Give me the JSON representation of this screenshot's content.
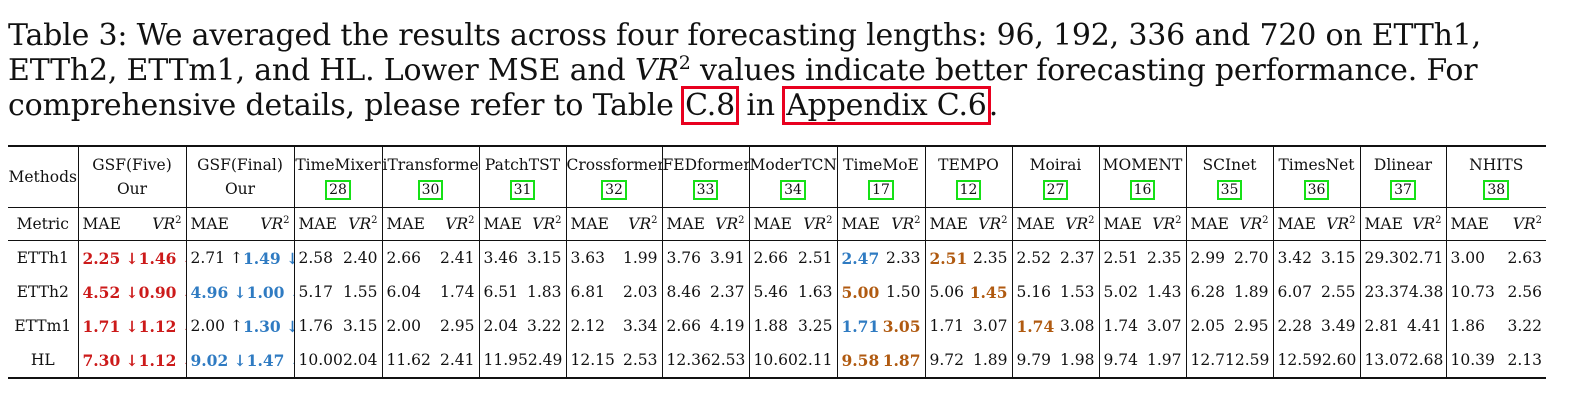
{
  "caption": {
    "part1": "Table 3: We averaged the results across four forecasting lengths: 96, 192, 336 and 720 on ETTh1, ETTh2, ETTm1, and HL. Lower MSE and ",
    "vr_symbol": "VR",
    "vr_exp": "2",
    "part2": " values indicate better forecasting performance. For comprehensive details, please refer to Table ",
    "table_ref": "C.8",
    "part3": " in ",
    "appendix_ref": "Appendix  C.6",
    "part4": "."
  },
  "colors": {
    "best_red": "#cc1a1a",
    "second_blue": "#2f7bc2",
    "third_orange": "#b05a10",
    "ref_box": "#e8001f",
    "cite_box": "#16e016"
  },
  "table": {
    "methods_label": "Methods",
    "metric_label": "Metric",
    "mae": "MAE",
    "vr": "VR",
    "vr_exp": "2",
    "our_label": "Our",
    "methods": [
      {
        "name": "GSF(Five)",
        "sub": "Our",
        "cite": ""
      },
      {
        "name": "GSF(Final)",
        "sub": "Our",
        "cite": ""
      },
      {
        "name": "TimeMixer",
        "cite": "28"
      },
      {
        "name": "iTransformer",
        "cite": "30"
      },
      {
        "name": "PatchTST",
        "cite": "31"
      },
      {
        "name": "Crossformer",
        "cite": "32"
      },
      {
        "name": "FEDformer",
        "cite": "33"
      },
      {
        "name": "ModerTCN",
        "cite": "34"
      },
      {
        "name": "TimeMoE",
        "cite": "17"
      },
      {
        "name": "TEMPO",
        "cite": "12"
      },
      {
        "name": "Moirai",
        "cite": "27"
      },
      {
        "name": "MOMENT",
        "cite": "16"
      },
      {
        "name": "SCInet",
        "cite": "35"
      },
      {
        "name": "TimesNet",
        "cite": "36"
      },
      {
        "name": "Dlinear",
        "cite": "37"
      },
      {
        "name": "NHITS",
        "cite": "38"
      }
    ],
    "rows": [
      {
        "dataset": "ETTh1",
        "gsf_five": {
          "mae": "2.25",
          "mae_arrow": "↓",
          "vr": "1.46",
          "vr_arrow": "↓"
        },
        "gsf_final": {
          "mae": "2.71",
          "mae_arrow": "↑",
          "vr": "1.49",
          "vr_arrow": "↓"
        },
        "cells": [
          {
            "mae": "2.58",
            "vr": "2.40"
          },
          {
            "mae": "2.66",
            "vr": "2.41"
          },
          {
            "mae": "3.46",
            "vr": "3.15"
          },
          {
            "mae": "3.63",
            "vr": "1.99"
          },
          {
            "mae": "3.76",
            "vr": "3.91"
          },
          {
            "mae": "2.66",
            "vr": "2.51"
          },
          {
            "mae": "2.47",
            "vr": "2.33"
          },
          {
            "mae": "2.51",
            "vr": "2.35"
          },
          {
            "mae": "2.52",
            "vr": "2.37"
          },
          {
            "mae": "2.51",
            "vr": "2.35"
          },
          {
            "mae": "2.99",
            "vr": "2.70"
          },
          {
            "mae": "3.42",
            "vr": "3.15"
          },
          {
            "mae": "29.30",
            "vr": "2.71"
          },
          {
            "mae": "3.00",
            "vr": "2.63"
          }
        ]
      },
      {
        "dataset": "ETTh2",
        "gsf_five": {
          "mae": "4.52",
          "mae_arrow": "↓",
          "vr": "0.90",
          "vr_arrow": "↓"
        },
        "gsf_final": {
          "mae": "4.96",
          "mae_arrow": "↓",
          "vr": "1.00",
          "vr_arrow": "↓"
        },
        "cells": [
          {
            "mae": "5.17",
            "vr": "1.55"
          },
          {
            "mae": "6.04",
            "vr": "1.74"
          },
          {
            "mae": "6.51",
            "vr": "1.83"
          },
          {
            "mae": "6.81",
            "vr": "2.03"
          },
          {
            "mae": "8.46",
            "vr": "2.37"
          },
          {
            "mae": "5.46",
            "vr": "1.63"
          },
          {
            "mae": "5.00",
            "vr": "1.50"
          },
          {
            "mae": "5.06",
            "vr": "1.45"
          },
          {
            "mae": "5.16",
            "vr": "1.53"
          },
          {
            "mae": "5.02",
            "vr": "1.43"
          },
          {
            "mae": "6.28",
            "vr": "1.89"
          },
          {
            "mae": "6.07",
            "vr": "2.55"
          },
          {
            "mae": "23.37",
            "vr": "4.38"
          },
          {
            "mae": "10.73",
            "vr": "2.56"
          }
        ]
      },
      {
        "dataset": "ETTm1",
        "gsf_five": {
          "mae": "1.71",
          "mae_arrow": "↓",
          "vr": "1.12",
          "vr_arrow": "↓"
        },
        "gsf_final": {
          "mae": "2.00",
          "mae_arrow": "↑",
          "vr": "1.30",
          "vr_arrow": "↓"
        },
        "cells": [
          {
            "mae": "1.76",
            "vr": "3.15"
          },
          {
            "mae": "2.00",
            "vr": "2.95"
          },
          {
            "mae": "2.04",
            "vr": "3.22"
          },
          {
            "mae": "2.12",
            "vr": "3.34"
          },
          {
            "mae": "2.66",
            "vr": "4.19"
          },
          {
            "mae": "1.88",
            "vr": "3.25"
          },
          {
            "mae": "1.71",
            "vr": "3.05"
          },
          {
            "mae": "1.71",
            "vr": "3.07"
          },
          {
            "mae": "1.74",
            "vr": "3.08"
          },
          {
            "mae": "1.74",
            "vr": "3.07"
          },
          {
            "mae": "2.05",
            "vr": "2.95"
          },
          {
            "mae": "2.28",
            "vr": "3.49"
          },
          {
            "mae": "2.81",
            "vr": "4.41"
          },
          {
            "mae": "1.86",
            "vr": "3.22"
          }
        ]
      },
      {
        "dataset": "HL",
        "gsf_five": {
          "mae": "7.30",
          "mae_arrow": "↓",
          "vr": "1.12",
          "vr_arrow": "↓"
        },
        "gsf_final": {
          "mae": "9.02",
          "mae_arrow": "↓",
          "vr": "1.47",
          "vr_arrow": "↓"
        },
        "cells": [
          {
            "mae": "10.00",
            "vr": "2.04"
          },
          {
            "mae": "11.62",
            "vr": "2.41"
          },
          {
            "mae": "11.95",
            "vr": "2.49"
          },
          {
            "mae": "12.15",
            "vr": "2.53"
          },
          {
            "mae": "12.36",
            "vr": "2.53"
          },
          {
            "mae": "10.60",
            "vr": "2.11"
          },
          {
            "mae": "9.58",
            "vr": "1.87"
          },
          {
            "mae": "9.72",
            "vr": "1.89"
          },
          {
            "mae": "9.79",
            "vr": "1.98"
          },
          {
            "mae": "9.74",
            "vr": "1.97"
          },
          {
            "mae": "12.71",
            "vr": "2.59"
          },
          {
            "mae": "12.59",
            "vr": "2.60"
          },
          {
            "mae": "13.07",
            "vr": "2.68"
          },
          {
            "mae": "10.39",
            "vr": "2.13"
          }
        ]
      }
    ]
  }
}
